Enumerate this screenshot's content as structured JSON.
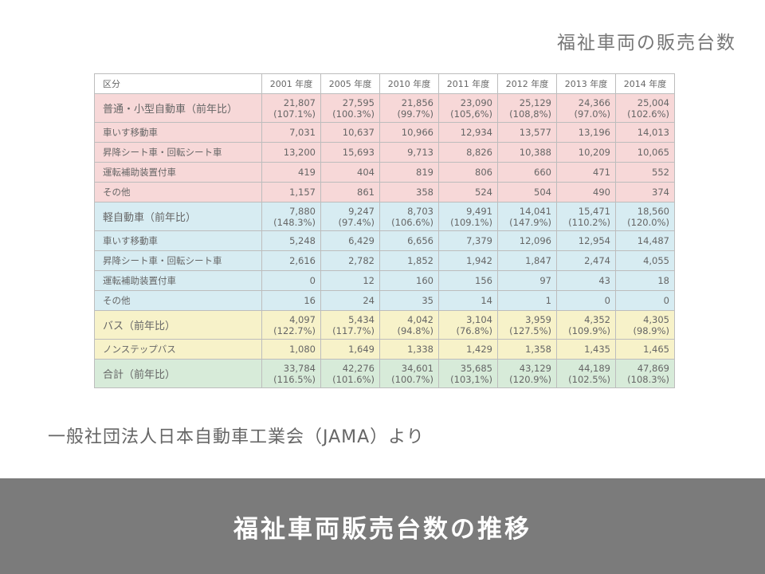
{
  "slide": {
    "corner_title": "福祉車両の販売台数",
    "source": "一般社団法人日本自動車工業会（JAMA）より",
    "footer_title": "福祉車両販売台数の推移"
  },
  "colors": {
    "pink": "#f7d8d8",
    "blue": "#d7ecf2",
    "yellow": "#f7f2c9",
    "green": "#d7ebd9",
    "footer": "#7b7b7b"
  },
  "chart_data": {
    "type": "table",
    "columns": [
      "区分",
      "2001 年度",
      "2005 年度",
      "2010 年度",
      "2011 年度",
      "2012 年度",
      "2013 年度",
      "2014 年度"
    ],
    "rows": [
      {
        "label": "普通・小型自動車（前年比）",
        "color": "pink",
        "group": true,
        "values": [
          "21,807",
          "27,595",
          "21,856",
          "23,090",
          "25,129",
          "24,366",
          "25,004"
        ],
        "ratios": [
          "(107.1%)",
          "(100.3%)",
          "(99.7%)",
          "(105,6%)",
          "(108,8%)",
          "(97.0%)",
          "(102.6%)"
        ]
      },
      {
        "label": "車いす移動車",
        "color": "pink",
        "values": [
          "7,031",
          "10,637",
          "10,966",
          "12,934",
          "13,577",
          "13,196",
          "14,013"
        ]
      },
      {
        "label": "昇降シート車・回転シート車",
        "color": "pink",
        "values": [
          "13,200",
          "15,693",
          "9,713",
          "8,826",
          "10,388",
          "10,209",
          "10,065"
        ]
      },
      {
        "label": "運転補助装置付車",
        "color": "pink",
        "values": [
          "419",
          "404",
          "819",
          "806",
          "660",
          "471",
          "552"
        ]
      },
      {
        "label": "その他",
        "color": "pink",
        "values": [
          "1,157",
          "861",
          "358",
          "524",
          "504",
          "490",
          "374"
        ]
      },
      {
        "label": "軽自動車（前年比）",
        "color": "blue",
        "group": true,
        "values": [
          "7,880",
          "9,247",
          "8,703",
          "9,491",
          "14,041",
          "15,471",
          "18,560"
        ],
        "ratios": [
          "(148.3%)",
          "(97.4%)",
          "(106.6%)",
          "(109.1%)",
          "(147.9%)",
          "(110.2%)",
          "(120.0%)"
        ]
      },
      {
        "label": "車いす移動車",
        "color": "blue",
        "values": [
          "5,248",
          "6,429",
          "6,656",
          "7,379",
          "12,096",
          "12,954",
          "14,487"
        ]
      },
      {
        "label": "昇降シート車・回転シート車",
        "color": "blue",
        "values": [
          "2,616",
          "2,782",
          "1,852",
          "1,942",
          "1,847",
          "2,474",
          "4,055"
        ]
      },
      {
        "label": "運転補助装置付車",
        "color": "blue",
        "values": [
          "0",
          "12",
          "160",
          "156",
          "97",
          "43",
          "18"
        ]
      },
      {
        "label": "その他",
        "color": "blue",
        "values": [
          "16",
          "24",
          "35",
          "14",
          "1",
          "0",
          "0"
        ]
      },
      {
        "label": "バス（前年比）",
        "color": "yellow",
        "group": true,
        "values": [
          "4,097",
          "5,434",
          "4,042",
          "3,104",
          "3,959",
          "4,352",
          "4,305"
        ],
        "ratios": [
          "(122.7%)",
          "(117.7%)",
          "(94.8%)",
          "(76.8%)",
          "(127.5%)",
          "(109.9%)",
          "(98.9%)"
        ]
      },
      {
        "label": "ノンステップバス",
        "color": "yellow",
        "values": [
          "1,080",
          "1,649",
          "1,338",
          "1,429",
          "1,358",
          "1,435",
          "1,465"
        ]
      },
      {
        "label": "合計（前年比）",
        "color": "green",
        "group": true,
        "values": [
          "33,784",
          "42,276",
          "34,601",
          "35,685",
          "43,129",
          "44,189",
          "47,869"
        ],
        "ratios": [
          "(116.5%)",
          "(101.6%)",
          "(100.7%)",
          "(103,1%)",
          "(120.9%)",
          "(102.5%)",
          "(108.3%)"
        ]
      }
    ]
  }
}
